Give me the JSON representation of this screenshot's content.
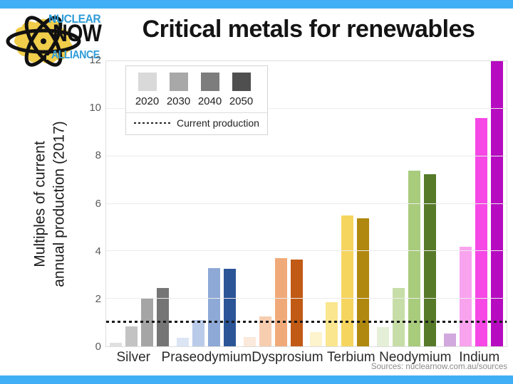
{
  "window": {
    "top_bar_color": "#41aff5",
    "bottom_bar_color": "#41aff5",
    "background": "#ffffff"
  },
  "logo": {
    "line1": "NUCLEAR",
    "line2": "NOW",
    "line3": "ALLIANCE",
    "blue": "#2f9cd8",
    "yellow": "#f0cd4a"
  },
  "header": {
    "title": "Critical metals for renewables"
  },
  "footer": {
    "source": "Sources: nuclearnow.com.au/sources"
  },
  "chart_data": {
    "type": "bar",
    "title": "Critical metals for renewables",
    "ylabel_lines": [
      "Multiples of current",
      "annual production (2017)"
    ],
    "ylim": [
      0,
      12
    ],
    "yticks": [
      0,
      2,
      4,
      6,
      8,
      10,
      12
    ],
    "grid": true,
    "legend": {
      "position": "top-left",
      "years": [
        "2020",
        "2030",
        "2040",
        "2050"
      ],
      "swatch_colors": [
        "#d9d9d9",
        "#a8a8a8",
        "#7d7d7d",
        "#4f4f4f"
      ],
      "reference_label": "Current production"
    },
    "reference_line": {
      "value": 1,
      "style": "dotted",
      "color": "#1a1a1a"
    },
    "categories": [
      "Silver",
      "Praseodymium",
      "Dysprosium",
      "Terbium",
      "Neodymium",
      "Indium"
    ],
    "series": [
      {
        "name": "2020",
        "values": [
          0.15,
          0.35,
          0.4,
          0.6,
          0.8,
          0.55
        ]
      },
      {
        "name": "2030",
        "values": [
          0.85,
          1.1,
          1.25,
          1.85,
          2.45,
          4.2
        ]
      },
      {
        "name": "2040",
        "values": [
          2.0,
          3.3,
          3.7,
          5.5,
          7.4,
          9.6
        ]
      },
      {
        "name": "2050",
        "values": [
          2.45,
          3.25,
          3.65,
          5.4,
          7.25,
          12.0
        ]
      }
    ],
    "group_colors": [
      [
        "#e0e0e0",
        "#c3c3c3",
        "#a5a5a5",
        "#757575"
      ],
      [
        "#dbe5f4",
        "#b9cbe9",
        "#8ea9d6",
        "#2b5597"
      ],
      [
        "#fbe9db",
        "#f7cdb0",
        "#f0aa7a",
        "#c05a15"
      ],
      [
        "#fdf3cd",
        "#fae68e",
        "#f6d55f",
        "#b0880f"
      ],
      [
        "#e5efd8",
        "#c7dda7",
        "#a8cb7c",
        "#567a29"
      ],
      [
        "#d2a9de",
        "#f9a3ef",
        "#f548e5",
        "#b60bc0"
      ]
    ]
  }
}
